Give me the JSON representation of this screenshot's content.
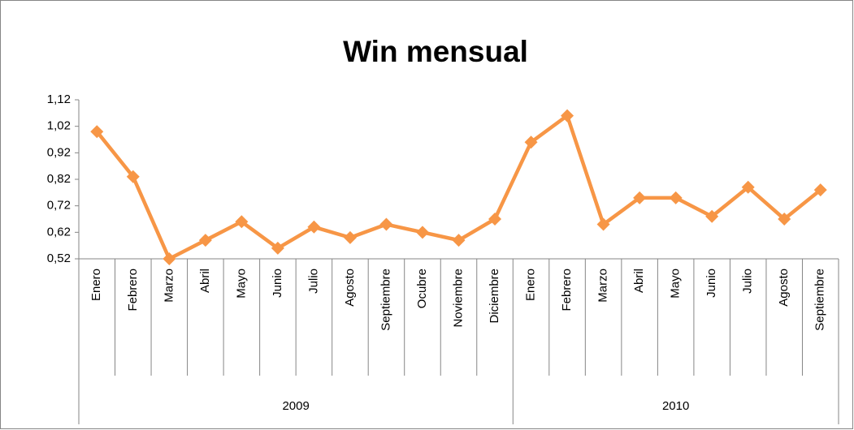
{
  "chart_data": {
    "type": "line",
    "title": "Win mensual",
    "groups": [
      {
        "name": "2009",
        "categories": [
          "Enero",
          "Febrero",
          "Marzo",
          "Abril",
          "Mayo",
          "Junio",
          "Julio",
          "Agosto",
          "Septiembre",
          "Ocubre",
          "Noviembre",
          "Diciembre"
        ]
      },
      {
        "name": "2010",
        "categories": [
          "Enero",
          "Febrero",
          "Marzo",
          "Abril",
          "Mayo",
          "Junio",
          "Julio",
          "Agosto",
          "Septiembre"
        ]
      }
    ],
    "values": [
      1.0,
      0.83,
      0.52,
      0.59,
      0.66,
      0.56,
      0.64,
      0.6,
      0.65,
      0.62,
      0.59,
      0.67,
      0.96,
      1.06,
      0.65,
      0.75,
      0.75,
      0.68,
      0.79,
      0.67,
      0.78
    ],
    "color": "#f79646",
    "ylim": [
      0.52,
      1.12
    ],
    "yticks": [
      {
        "value": 0.52,
        "label": "0,52"
      },
      {
        "value": 0.62,
        "label": "0,62"
      },
      {
        "value": 0.72,
        "label": "0,72"
      },
      {
        "value": 0.82,
        "label": "0,82"
      },
      {
        "value": 0.92,
        "label": "0,92"
      },
      {
        "value": 1.02,
        "label": "1,02"
      },
      {
        "value": 1.12,
        "label": "1,12"
      }
    ],
    "grid": false
  }
}
